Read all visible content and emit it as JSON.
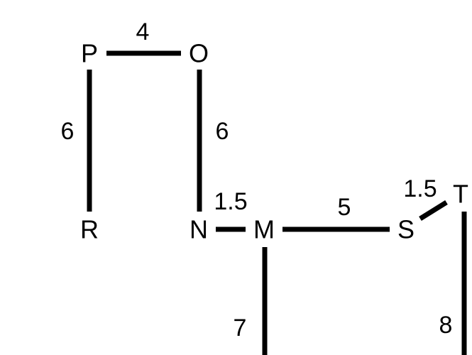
{
  "graph": {
    "nodes": [
      {
        "id": "P",
        "label": "P"
      },
      {
        "id": "O",
        "label": "O"
      },
      {
        "id": "R",
        "label": "R"
      },
      {
        "id": "N",
        "label": "N"
      },
      {
        "id": "M",
        "label": "M"
      },
      {
        "id": "S",
        "label": "S"
      },
      {
        "id": "T",
        "label": "T"
      }
    ],
    "edges": [
      {
        "from": "P",
        "to": "O",
        "weight": "4"
      },
      {
        "from": "P",
        "to": "R",
        "weight": "6"
      },
      {
        "from": "O",
        "to": "N",
        "weight": "6"
      },
      {
        "from": "N",
        "to": "M",
        "weight": "1.5"
      },
      {
        "from": "M",
        "to": "S",
        "weight": "5"
      },
      {
        "from": "S",
        "to": "T",
        "weight": "1.5"
      },
      {
        "from": "M",
        "to": "(off-page)",
        "weight": "7"
      },
      {
        "from": "T",
        "to": "(off-page)",
        "weight": "8"
      }
    ],
    "colors": {
      "line": "#000000",
      "text": "#000000",
      "background": "#ffffff"
    }
  }
}
